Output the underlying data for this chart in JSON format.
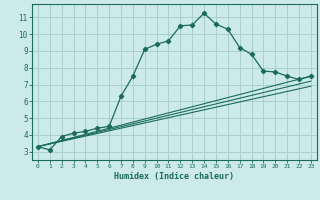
{
  "xlabel": "Humidex (Indice chaleur)",
  "bg_color": "#cceaea",
  "grid_color": "#aacfcf",
  "line_color": "#1a6b5a",
  "xlim": [
    -0.5,
    23.5
  ],
  "ylim": [
    2.5,
    11.8
  ],
  "xticks": [
    0,
    1,
    2,
    3,
    4,
    5,
    6,
    7,
    8,
    9,
    10,
    11,
    12,
    13,
    14,
    15,
    16,
    17,
    18,
    19,
    20,
    21,
    22,
    23
  ],
  "yticks": [
    3,
    4,
    5,
    6,
    7,
    8,
    9,
    10,
    11
  ],
  "series": [
    [
      0,
      3.3
    ],
    [
      1,
      3.1
    ],
    [
      2,
      3.9
    ],
    [
      3,
      4.1
    ],
    [
      4,
      4.2
    ],
    [
      5,
      4.4
    ],
    [
      6,
      4.5
    ],
    [
      7,
      6.3
    ],
    [
      8,
      7.5
    ],
    [
      9,
      9.1
    ],
    [
      10,
      9.4
    ],
    [
      11,
      9.6
    ],
    [
      12,
      10.5
    ],
    [
      13,
      10.55
    ],
    [
      14,
      11.25
    ],
    [
      15,
      10.6
    ],
    [
      16,
      10.3
    ],
    [
      17,
      9.2
    ],
    [
      18,
      8.8
    ],
    [
      19,
      7.8
    ],
    [
      20,
      7.75
    ],
    [
      21,
      7.5
    ],
    [
      22,
      7.3
    ],
    [
      23,
      7.5
    ]
  ],
  "linear_series": [
    [
      [
        0,
        3.3
      ],
      [
        23,
        7.5
      ]
    ],
    [
      [
        0,
        3.3
      ],
      [
        23,
        7.2
      ]
    ],
    [
      [
        0,
        3.3
      ],
      [
        23,
        6.9
      ]
    ]
  ]
}
